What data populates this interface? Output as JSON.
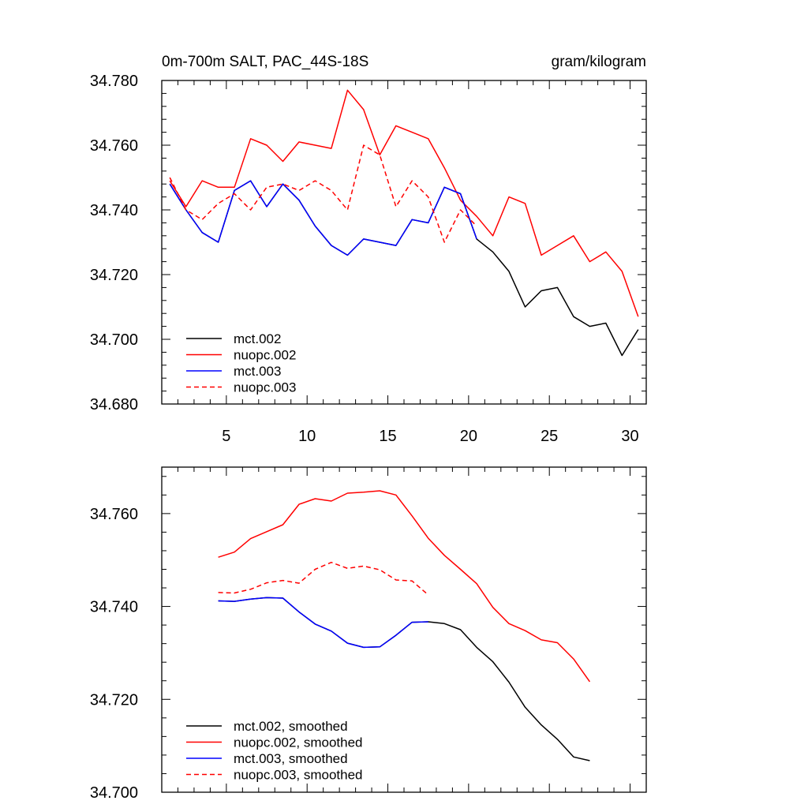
{
  "chart_data": [
    {
      "type": "line",
      "title": "0m-700m SALT, PAC_44S-18S",
      "units": "gram/kilogram",
      "xlim": [
        1,
        31
      ],
      "ylim": [
        34.68,
        34.78
      ],
      "x_ticks": [
        5,
        10,
        15,
        20,
        25,
        30
      ],
      "y_ticks": [
        34.68,
        34.7,
        34.72,
        34.74,
        34.76,
        34.78
      ],
      "y_tick_labels": [
        "34.680",
        "34.700",
        "34.720",
        "34.740",
        "34.760",
        "34.780"
      ],
      "legend_position": "bottom-left",
      "series": [
        {
          "name": "mct.002",
          "color": "#000000",
          "dash": "solid",
          "x": [
            1.5,
            2.5,
            3.5,
            4.5,
            5.5,
            6.5,
            7.5,
            8.5,
            9.5,
            10.5,
            11.5,
            12.5,
            13.5,
            14.5,
            15.5,
            16.5,
            17.5,
            18.5,
            19.5,
            20.5,
            21.5,
            22.5,
            23.5,
            24.5,
            25.5,
            26.5,
            27.5,
            28.5,
            29.5,
            30.5
          ],
          "y": [
            34.748,
            34.74,
            34.733,
            34.73,
            34.746,
            34.749,
            34.741,
            34.748,
            34.743,
            34.735,
            34.729,
            34.726,
            34.731,
            34.73,
            34.729,
            34.737,
            34.736,
            34.747,
            34.745,
            34.731,
            34.727,
            34.721,
            34.71,
            34.715,
            34.716,
            34.707,
            34.704,
            34.705,
            34.695,
            34.703
          ]
        },
        {
          "name": "nuopc.002",
          "color": "#ff0000",
          "dash": "solid",
          "x": [
            1.5,
            2.5,
            3.5,
            4.5,
            5.5,
            6.5,
            7.5,
            8.5,
            9.5,
            10.5,
            11.5,
            12.5,
            13.5,
            14.5,
            15.5,
            16.5,
            17.5,
            18.5,
            19.5,
            20.5,
            21.5,
            22.5,
            23.5,
            24.5,
            25.5,
            26.5,
            27.5,
            28.5,
            29.5,
            30.5
          ],
          "y": [
            34.749,
            34.741,
            34.749,
            34.747,
            34.747,
            34.762,
            34.76,
            34.755,
            34.761,
            34.76,
            34.759,
            34.777,
            34.771,
            34.757,
            34.766,
            34.764,
            34.762,
            34.753,
            34.743,
            34.738,
            34.732,
            34.744,
            34.742,
            34.726,
            34.729,
            34.732,
            34.724,
            34.727,
            34.721,
            34.707
          ]
        },
        {
          "name": "mct.003",
          "color": "#0000ff",
          "dash": "solid",
          "x": [
            1.5,
            2.5,
            3.5,
            4.5,
            5.5,
            6.5,
            7.5,
            8.5,
            9.5,
            10.5,
            11.5,
            12.5,
            13.5,
            14.5,
            15.5,
            16.5,
            17.5,
            18.5,
            19.5,
            20.5
          ],
          "y": [
            34.748,
            34.74,
            34.733,
            34.73,
            34.746,
            34.749,
            34.741,
            34.748,
            34.743,
            34.735,
            34.729,
            34.726,
            34.731,
            34.73,
            34.729,
            34.737,
            34.736,
            34.747,
            34.745,
            34.731
          ]
        },
        {
          "name": "nuopc.003",
          "color": "#ff0000",
          "dash": "dashed",
          "x": [
            1.5,
            2.5,
            3.5,
            4.5,
            5.5,
            6.5,
            7.5,
            8.5,
            9.5,
            10.5,
            11.5,
            12.5,
            13.5,
            14.5,
            15.5,
            16.5,
            17.5,
            18.5,
            19.5,
            20.5
          ],
          "y": [
            34.75,
            34.74,
            34.737,
            34.742,
            34.745,
            34.74,
            34.747,
            34.748,
            34.746,
            34.749,
            34.746,
            34.74,
            34.76,
            34.757,
            34.741,
            34.749,
            34.744,
            34.73,
            34.74,
            34.735
          ]
        }
      ]
    },
    {
      "type": "line",
      "xlim": [
        1,
        31
      ],
      "ylim": [
        34.7,
        34.77
      ],
      "x_ticks": [
        5,
        10,
        15,
        20,
        25,
        30
      ],
      "y_ticks": [
        34.7,
        34.72,
        34.74,
        34.76
      ],
      "y_tick_labels": [
        "34.700",
        "34.720",
        "34.740",
        "34.760"
      ],
      "legend_position": "bottom-left",
      "series": [
        {
          "name": "mct.002, smoothed",
          "color": "#000000",
          "dash": "solid",
          "x": [
            4.5,
            5.5,
            6.5,
            7.5,
            8.5,
            9.5,
            10.5,
            11.5,
            12.5,
            13.5,
            14.5,
            15.5,
            16.5,
            17.5,
            18.5,
            19.5,
            20.5,
            21.5,
            22.5,
            23.5,
            24.5,
            25.5,
            26.5,
            27.5
          ],
          "y": [
            34.7412,
            34.7411,
            34.7416,
            34.7419,
            34.7418,
            34.7388,
            34.7362,
            34.7347,
            34.7321,
            34.7312,
            34.7313,
            34.7338,
            34.7366,
            34.7367,
            34.7363,
            34.735,
            34.7312,
            34.7281,
            34.7237,
            34.7183,
            34.7145,
            34.7114,
            34.7076,
            34.7068
          ]
        },
        {
          "name": "nuopc.002, smoothed",
          "color": "#ff0000",
          "dash": "solid",
          "x": [
            4.5,
            5.5,
            6.5,
            7.5,
            8.5,
            9.5,
            10.5,
            11.5,
            12.5,
            13.5,
            14.5,
            15.5,
            16.5,
            17.5,
            18.5,
            19.5,
            20.5,
            21.5,
            22.5,
            23.5,
            24.5,
            25.5,
            26.5,
            27.5
          ],
          "y": [
            34.7506,
            34.7517,
            34.7546,
            34.7561,
            34.7576,
            34.762,
            34.7632,
            34.7627,
            34.7644,
            34.7646,
            34.7649,
            34.764,
            34.7595,
            34.7547,
            34.751,
            34.748,
            34.7449,
            34.7398,
            34.7363,
            34.7348,
            34.7328,
            34.7322,
            34.7287,
            34.7238
          ]
        },
        {
          "name": "mct.003, smoothed",
          "color": "#0000ff",
          "dash": "solid",
          "x": [
            4.5,
            5.5,
            6.5,
            7.5,
            8.5,
            9.5,
            10.5,
            11.5,
            12.5,
            13.5,
            14.5,
            15.5,
            16.5,
            17.5
          ],
          "y": [
            34.7412,
            34.7411,
            34.7416,
            34.7419,
            34.7418,
            34.7388,
            34.7362,
            34.7347,
            34.7321,
            34.7312,
            34.7313,
            34.7338,
            34.7366,
            34.7367
          ]
        },
        {
          "name": "nuopc.003, smoothed",
          "color": "#ff0000",
          "dash": "dashed",
          "x": [
            4.5,
            5.5,
            6.5,
            7.5,
            8.5,
            9.5,
            10.5,
            11.5,
            12.5,
            13.5,
            14.5,
            15.5,
            16.5,
            17.5
          ],
          "y": [
            34.743,
            34.7429,
            34.7437,
            34.7451,
            34.7456,
            34.745,
            34.748,
            34.7495,
            34.7482,
            34.7487,
            34.7479,
            34.7457,
            34.7455,
            34.7425
          ]
        }
      ]
    }
  ]
}
